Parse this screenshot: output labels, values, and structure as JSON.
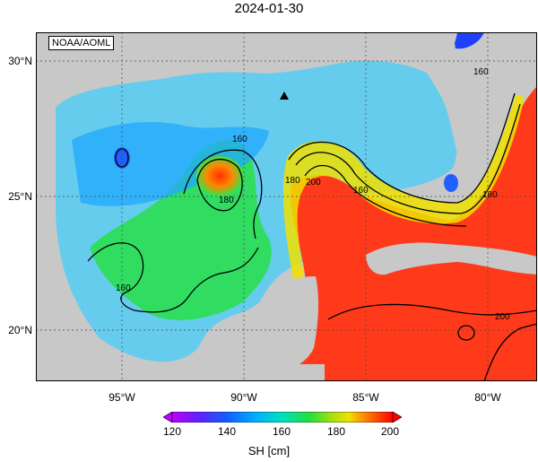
{
  "title": "2024-01-30",
  "credit": "NOAA/AOML",
  "lat_labels": [
    "30°N",
    "25°N",
    "20°N"
  ],
  "lon_labels": [
    "95°W",
    "90°W",
    "85°W",
    "80°W"
  ],
  "contour_labels": [
    "160",
    "160",
    "180",
    "180",
    "200",
    "160",
    "180",
    "160",
    "200"
  ],
  "colorbar": {
    "ticks": [
      "120",
      "140",
      "160",
      "180",
      "200"
    ],
    "label": "SH [cm]",
    "colors": [
      "#c000ff",
      "#6020ff",
      "#1060ff",
      "#00b0ff",
      "#00e0c0",
      "#20e040",
      "#a0e010",
      "#f0e000",
      "#ff8000",
      "#ff3000",
      "#ff0000"
    ]
  },
  "colors": {
    "land": "#c8c8c8",
    "frame": "#000000"
  },
  "markers": [
    {
      "symbol": "triangle",
      "lon": -88.3,
      "lat": 28.8
    }
  ]
}
